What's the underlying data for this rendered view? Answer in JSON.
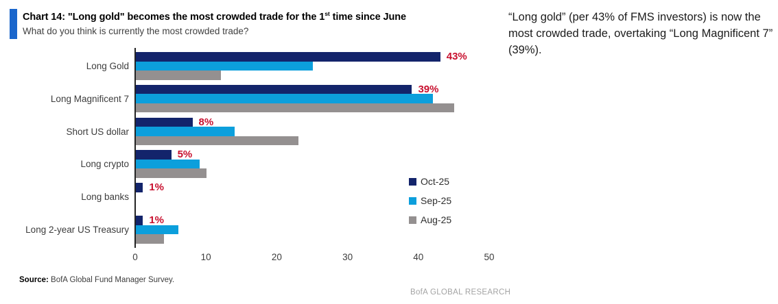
{
  "header": {
    "title_prefix": "Chart 14: \"Long gold\" becomes the most crowded trade for the 1",
    "title_sup": "st",
    "title_suffix": " time since June",
    "subtitle": "What do you think is currently the most crowded trade?"
  },
  "annotation": "“Long gold” (per 43% of FMS investors) is now the most crowded trade, overtaking “Long Magnificent 7” (39%).",
  "chart_data": {
    "type": "bar",
    "orientation": "horizontal",
    "title": "Chart 14: \"Long gold\" becomes the most crowded trade for the 1st time since June",
    "subtitle": "What do you think is currently the most crowded trade?",
    "categories": [
      "Long Gold",
      "Long Magnificent 7",
      "Short US dollar",
      "Long crypto",
      "Long banks",
      "Long 2-year US Treasury"
    ],
    "series": [
      {
        "name": "Oct-25",
        "color": "#13246B",
        "values": [
          43,
          39,
          8,
          5,
          1,
          1
        ]
      },
      {
        "name": "Sep-25",
        "color": "#0C9FDC",
        "values": [
          25,
          42,
          14,
          9,
          0,
          6
        ]
      },
      {
        "name": "Aug-25",
        "color": "#949090",
        "values": [
          12,
          45,
          23,
          10,
          0,
          4
        ]
      }
    ],
    "value_labels": {
      "on_series": "Oct-25",
      "labels": [
        "43%",
        "39%",
        "8%",
        "5%",
        "1%",
        "1%"
      ],
      "color": "#C8102E"
    },
    "x_ticks": [
      "0",
      "10",
      "20",
      "30",
      "40",
      "50"
    ],
    "xlim": [
      0,
      50
    ],
    "grid": false,
    "legend_position": "center-right"
  },
  "footer": {
    "source_label": "Source:",
    "source_text": " BofA Global Fund Manager Survey.",
    "brand": "BofA GLOBAL RESEARCH"
  },
  "colors": {
    "accent_blue": "#1A66CC",
    "value_label_red": "#C8102E",
    "axis": "#232323"
  }
}
